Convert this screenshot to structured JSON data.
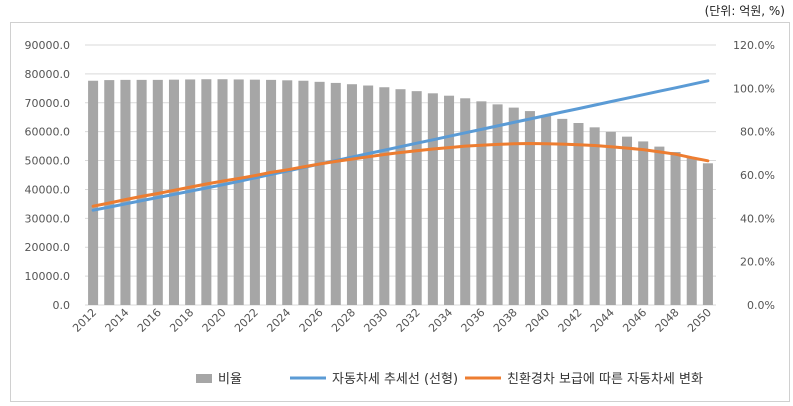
{
  "unit_note": "(단위: 억원, %)",
  "legend": {
    "bars": "비율",
    "trend": "자동차세 추세선 (선형)",
    "eco": "친환경차 보급에 따른 자동차세 변화"
  },
  "colors": {
    "bars": "#a6a6a6",
    "trend": "#5b9bd5",
    "eco": "#ed7d31",
    "grid": "#d9d9d9"
  },
  "chart_data": {
    "type": "bar",
    "title": "",
    "xlabel": "",
    "ylabel": "",
    "y_left_ticks": [
      "0.0",
      "10000.0",
      "20000.0",
      "30000.0",
      "40000.0",
      "50000.0",
      "60000.0",
      "70000.0",
      "80000.0",
      "90000.0"
    ],
    "y_right_ticks": [
      "0.0%",
      "20.0%",
      "40.0%",
      "60.0%",
      "80.0%",
      "100.0%",
      "120.0%"
    ],
    "ylim_left": [
      0,
      90000
    ],
    "ylim_right": [
      0,
      120
    ],
    "x_tick_labels": [
      "2012",
      "2014",
      "2016",
      "2018",
      "2020",
      "2022",
      "2024",
      "2026",
      "2028",
      "2030",
      "2032",
      "2034",
      "2036",
      "2038",
      "2040",
      "2042",
      "2044",
      "2046",
      "2048",
      "2050"
    ],
    "years": [
      2012,
      2013,
      2014,
      2015,
      2016,
      2017,
      2018,
      2019,
      2020,
      2021,
      2022,
      2023,
      2024,
      2025,
      2026,
      2027,
      2028,
      2029,
      2030,
      2031,
      2032,
      2033,
      2034,
      2035,
      2036,
      2037,
      2038,
      2039,
      2040,
      2041,
      2042,
      2043,
      2044,
      2045,
      2046,
      2047,
      2048,
      2049,
      2050
    ],
    "series": [
      {
        "name": "비율",
        "kind": "bar",
        "axis": "right",
        "values": [
          103.5,
          103.8,
          103.9,
          103.9,
          103.9,
          104.0,
          104.1,
          104.2,
          104.2,
          104.1,
          104.0,
          103.9,
          103.7,
          103.5,
          103.0,
          102.5,
          101.9,
          101.3,
          100.5,
          99.6,
          98.7,
          97.7,
          96.6,
          95.4,
          94.0,
          92.6,
          91.1,
          89.5,
          87.7,
          85.9,
          84.0,
          82.0,
          79.9,
          77.7,
          75.5,
          73.1,
          70.6,
          68.0,
          65.4
        ]
      },
      {
        "name": "자동차세 추세선 (선형)",
        "kind": "line",
        "axis": "left",
        "values": [
          32800,
          33900,
          35000,
          36100,
          37200,
          38300,
          39400,
          40500,
          41600,
          42800,
          44000,
          45200,
          46400,
          47600,
          48800,
          50000,
          51200,
          52400,
          53600,
          54800,
          56000,
          57200,
          58400,
          59600,
          60800,
          62000,
          63200,
          64400,
          65600,
          66800,
          68000,
          69200,
          70400,
          71600,
          72800,
          74000,
          75200,
          76400,
          77600
        ]
      },
      {
        "name": "친환경차 보급에 따른 자동차세 변화",
        "kind": "line",
        "axis": "left",
        "values": [
          34200,
          35300,
          36500,
          37600,
          38600,
          39700,
          40800,
          41900,
          42900,
          43800,
          44800,
          45900,
          46800,
          47800,
          48800,
          49700,
          50500,
          51300,
          52100,
          52800,
          53400,
          54000,
          54500,
          55000,
          55300,
          55600,
          55800,
          55900,
          55800,
          55700,
          55500,
          55200,
          54800,
          54300,
          53800,
          53000,
          52200,
          51000,
          49900
        ]
      }
    ],
    "grid": true,
    "legend_position": "bottom"
  }
}
